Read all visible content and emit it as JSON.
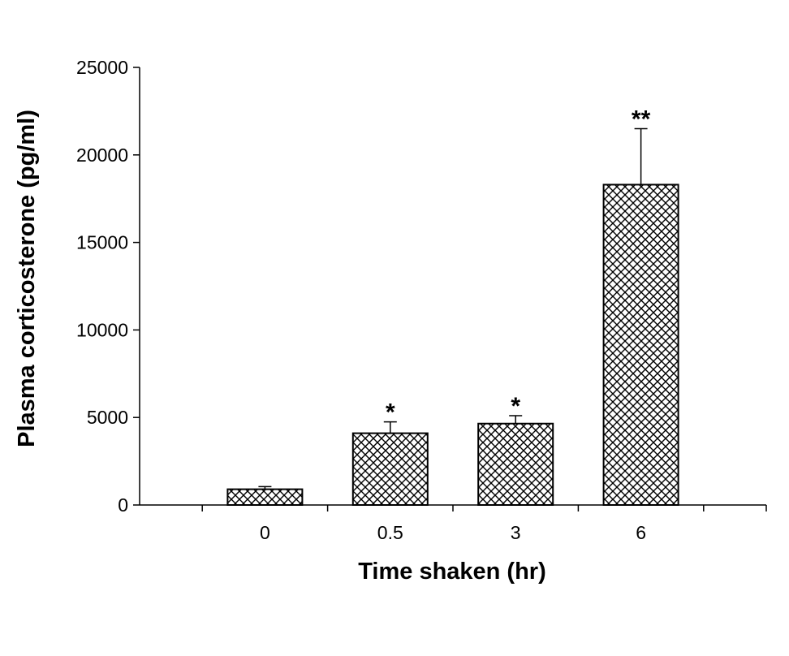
{
  "chart_data": {
    "type": "bar",
    "categories": [
      "0",
      "0.5",
      "3",
      "6"
    ],
    "values": [
      900,
      4100,
      4650,
      18300
    ],
    "error_plus": [
      150,
      650,
      450,
      3200
    ],
    "significance": [
      "",
      "*",
      "*",
      "**"
    ],
    "xlabel": "Time shaken (hr)",
    "ylabel": "Plasma corticosterone (pg/ml)",
    "ylim": [
      0,
      25000
    ],
    "yticks": [
      0,
      5000,
      10000,
      15000,
      20000,
      25000
    ],
    "bar_pattern": "crosshatch",
    "bar_color": "#000000",
    "background": "#ffffff",
    "grid": false,
    "legend": "none"
  }
}
